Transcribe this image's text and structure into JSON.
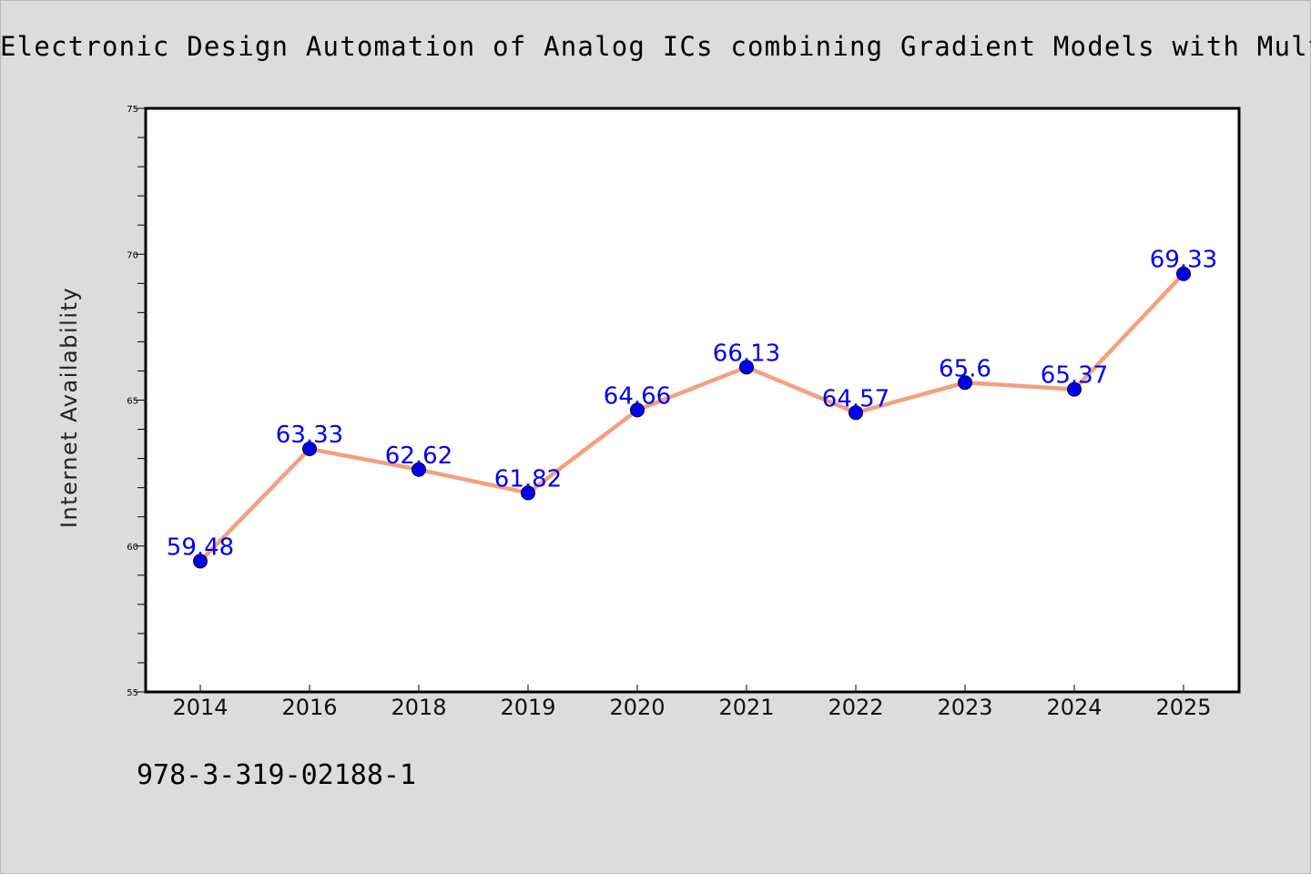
{
  "colors": {
    "background": "#dcdcdc",
    "plot_background": "#ffffff",
    "line": "#f4a07e",
    "marker": "#0000ee",
    "data_label": "#0000ee"
  },
  "footer": {
    "text": "978-3-319-02188-1"
  },
  "chart_data": {
    "type": "line",
    "title": "Electronic Design Automation of Analog ICs combining Gradient Models with Multi-",
    "xlabel": "",
    "ylabel": "Internet Availability",
    "categories": [
      "2014",
      "2016",
      "2018",
      "2019",
      "2020",
      "2021",
      "2022",
      "2023",
      "2024",
      "2025"
    ],
    "values": [
      59.48,
      63.33,
      62.62,
      61.82,
      64.66,
      66.13,
      64.57,
      65.6,
      65.37,
      69.33
    ],
    "data_labels": [
      "59.48",
      "63.33",
      "62.62",
      "61.82",
      "64.66",
      "66.13",
      "64.57",
      "65.6",
      "65.37",
      "69.33"
    ],
    "ylim": [
      55,
      75
    ],
    "yticks": [
      55,
      60,
      65,
      70,
      75
    ],
    "y_minor_step": 1,
    "grid": false,
    "legend": "none"
  }
}
